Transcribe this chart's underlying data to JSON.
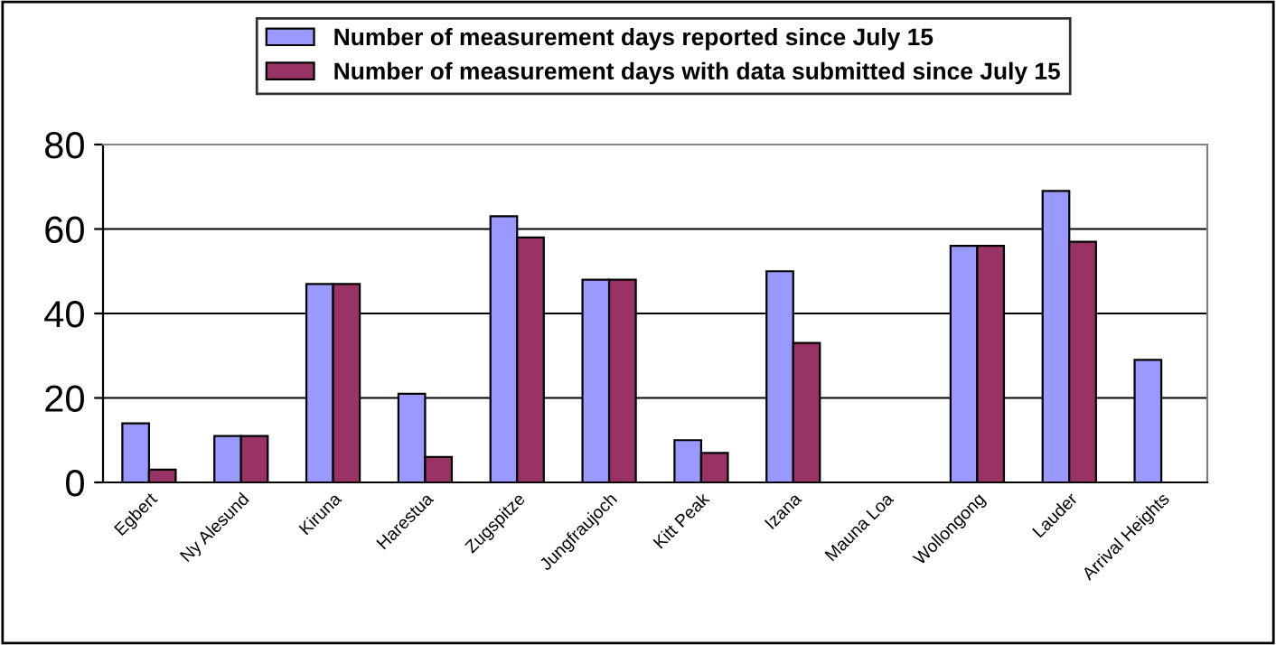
{
  "chart_data": {
    "type": "bar",
    "categories": [
      "Egbert",
      "Ny Alesund",
      "Kiruna",
      "Harestua",
      "Zugspitze",
      "Jungfraujoch",
      "Kitt Peak",
      "Izana",
      "Mauna Loa",
      "Wollongong",
      "Lauder",
      "Arrival Heights"
    ],
    "series": [
      {
        "name": "Number of measurement days reported since July 15",
        "color": "#9999ff",
        "values": [
          14,
          11,
          47,
          21,
          63,
          48,
          10,
          50,
          null,
          56,
          69,
          29
        ]
      },
      {
        "name": "Number of measurement days with data submitted since July 15",
        "color": "#993366",
        "values": [
          3,
          11,
          47,
          6,
          58,
          48,
          7,
          33,
          null,
          56,
          57,
          null
        ]
      }
    ],
    "ylim": [
      0,
      80
    ],
    "yticks": [
      0,
      20,
      40,
      60,
      80
    ],
    "grid": "y",
    "legend": "top"
  }
}
